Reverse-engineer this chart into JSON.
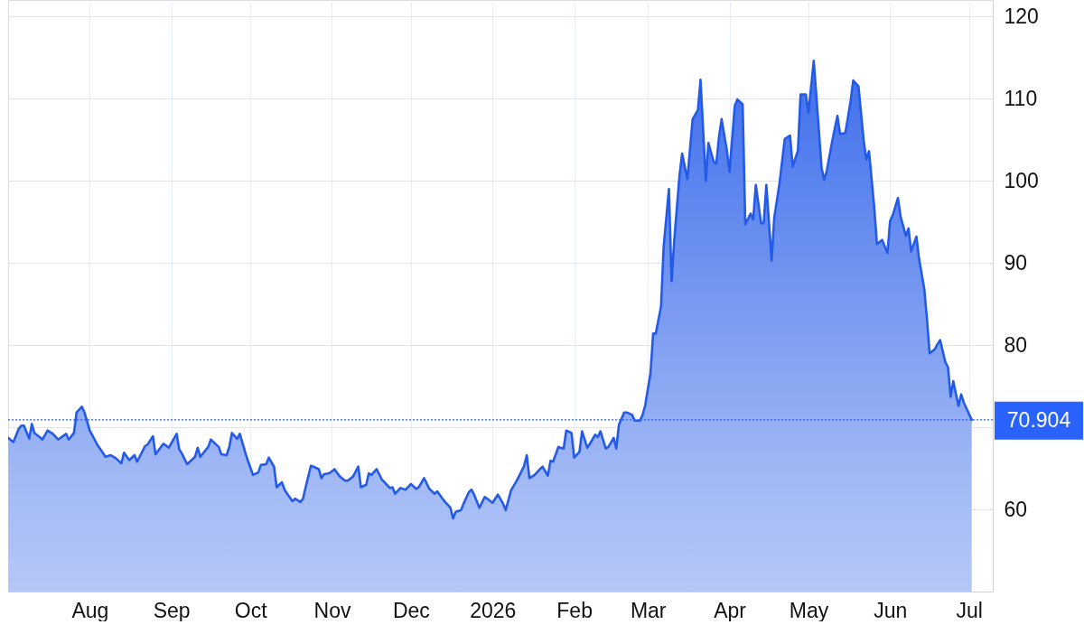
{
  "chart_data": {
    "type": "area",
    "x": [
      "2025-07-01",
      "2025-07-03",
      "2025-07-05",
      "2025-07-06",
      "2025-07-07",
      "2025-07-09",
      "2025-07-10",
      "2025-07-11",
      "2025-07-13",
      "2025-07-14",
      "2025-07-16",
      "2025-07-18",
      "2025-07-20",
      "2025-07-23",
      "2025-07-24",
      "2025-07-26",
      "2025-07-27",
      "2025-07-29",
      "2025-07-30",
      "2025-08-01",
      "2025-08-04",
      "2025-08-07",
      "2025-08-09",
      "2025-08-11",
      "2025-08-13",
      "2025-08-14",
      "2025-08-16",
      "2025-08-18",
      "2025-08-19",
      "2025-08-22",
      "2025-08-23",
      "2025-08-25",
      "2025-08-26",
      "2025-08-29",
      "2025-08-31",
      "2025-09-03",
      "2025-09-04",
      "2025-09-05",
      "2025-09-07",
      "2025-09-10",
      "2025-09-11",
      "2025-09-12",
      "2025-09-15",
      "2025-09-16",
      "2025-09-19",
      "2025-09-20",
      "2025-09-22",
      "2025-09-23",
      "2025-09-24",
      "2025-09-26",
      "2025-09-27",
      "2025-09-29",
      "2025-09-30",
      "2025-10-02",
      "2025-10-04",
      "2025-10-05",
      "2025-10-07",
      "2025-10-08",
      "2025-10-10",
      "2025-10-11",
      "2025-10-13",
      "2025-10-14",
      "2025-10-15",
      "2025-10-17",
      "2025-10-18",
      "2025-10-20",
      "2025-10-21",
      "2025-10-22",
      "2025-10-24",
      "2025-10-25",
      "2025-10-27",
      "2025-10-28",
      "2025-10-29",
      "2025-10-31",
      "2025-11-02",
      "2025-11-04",
      "2025-11-06",
      "2025-11-07",
      "2025-11-09",
      "2025-11-11",
      "2025-11-12",
      "2025-11-14",
      "2025-11-15",
      "2025-11-16",
      "2025-11-18",
      "2025-11-20",
      "2025-11-21",
      "2025-11-23",
      "2025-11-24",
      "2025-11-25",
      "2025-11-27",
      "2025-11-29",
      "2025-12-01",
      "2025-12-03",
      "2025-12-04",
      "2025-12-06",
      "2025-12-08",
      "2025-12-10",
      "2025-12-11",
      "2025-12-13",
      "2025-12-14",
      "2025-12-16",
      "2025-12-17",
      "2025-12-18",
      "2025-12-20",
      "2025-12-21",
      "2025-12-23",
      "2025-12-24",
      "2025-12-25",
      "2025-12-27",
      "2025-12-29",
      "2025-12-30",
      "2026-01-01",
      "2026-01-03",
      "2026-01-05",
      "2026-01-06",
      "2026-01-08",
      "2026-01-10",
      "2026-01-11",
      "2026-01-13",
      "2026-01-14",
      "2026-01-15",
      "2026-01-17",
      "2026-01-19",
      "2026-01-20",
      "2026-01-22",
      "2026-01-23",
      "2026-01-24",
      "2026-01-26",
      "2026-01-28",
      "2026-01-29",
      "2026-01-31",
      "2026-02-01",
      "2026-02-03",
      "2026-02-04",
      "2026-02-06",
      "2026-02-07",
      "2026-02-09",
      "2026-02-10",
      "2026-02-11",
      "2026-02-13",
      "2026-02-14",
      "2026-02-16",
      "2026-02-17",
      "2026-02-18",
      "2026-02-20",
      "2026-02-21",
      "2026-02-23",
      "2026-02-24",
      "2026-02-26",
      "2026-02-27",
      "2026-02-28",
      "2026-03-02",
      "2026-03-03",
      "2026-03-04",
      "2026-03-06",
      "2026-03-07",
      "2026-03-09",
      "2026-03-10",
      "2026-03-11",
      "2026-03-13",
      "2026-03-14",
      "2026-03-16",
      "2026-03-18",
      "2026-03-20",
      "2026-03-21",
      "2026-03-23",
      "2026-03-24",
      "2026-03-26",
      "2026-03-27",
      "2026-03-28",
      "2026-03-29",
      "2026-03-31",
      "2026-04-01",
      "2026-04-03",
      "2026-04-04",
      "2026-04-06",
      "2026-04-07",
      "2026-04-09",
      "2026-04-10",
      "2026-04-11",
      "2026-04-13",
      "2026-04-14",
      "2026-04-15",
      "2026-04-17",
      "2026-04-18",
      "2026-04-20",
      "2026-04-22",
      "2026-04-24",
      "2026-04-25",
      "2026-04-27",
      "2026-04-28",
      "2026-04-30",
      "2026-05-01",
      "2026-05-03",
      "2026-05-04",
      "2026-05-06",
      "2026-05-07",
      "2026-05-08",
      "2026-05-10",
      "2026-05-12",
      "2026-05-13",
      "2026-05-15",
      "2026-05-17",
      "2026-05-18",
      "2026-05-20",
      "2026-05-22",
      "2026-05-23",
      "2026-05-24",
      "2026-05-26",
      "2026-05-27",
      "2026-05-29",
      "2026-05-31",
      "2026-06-01",
      "2026-06-02",
      "2026-06-04",
      "2026-06-05",
      "2026-06-07",
      "2026-06-08",
      "2026-06-09",
      "2026-06-11",
      "2026-06-12",
      "2026-06-14",
      "2026-06-15",
      "2026-06-16",
      "2026-06-18",
      "2026-06-19",
      "2026-06-20",
      "2026-06-22",
      "2026-06-23",
      "2026-06-24",
      "2026-06-25",
      "2026-06-27",
      "2026-06-28",
      "2026-06-29",
      "2026-07-01",
      "2026-07-02"
    ],
    "series": [
      {
        "color": "#245ae8",
        "values": [
          68.7,
          68.2,
          69.8,
          70.2,
          70.2,
          68.6,
          70.4,
          69.3,
          68.8,
          68.5,
          69.6,
          69.2,
          68.5,
          69.2,
          68.5,
          69.3,
          71.8,
          72.5,
          71.8,
          69.6,
          67.8,
          66.4,
          66.6,
          66.2,
          65.6,
          66.9,
          66.0,
          66.6,
          65.8,
          67.7,
          67.9,
          68.9,
          66.7,
          68.0,
          67.5,
          69.2,
          67.3,
          66.8,
          65.5,
          66.4,
          67.5,
          66.4,
          67.6,
          68.5,
          67.6,
          66.7,
          66.6,
          67.6,
          69.3,
          68.6,
          69.2,
          67.0,
          66.0,
          64.2,
          64.5,
          65.4,
          65.5,
          66.3,
          65.2,
          62.7,
          63.3,
          62.4,
          61.9,
          61.0,
          61.3,
          60.9,
          61.3,
          62.7,
          65.3,
          65.2,
          64.9,
          63.8,
          64.3,
          64.4,
          64.9,
          64.0,
          63.5,
          63.5,
          64.0,
          65.2,
          62.7,
          63.0,
          64.4,
          64.2,
          64.9,
          63.6,
          63.3,
          62.6,
          62.7,
          61.9,
          62.6,
          62.4,
          63.1,
          62.5,
          62.7,
          63.8,
          62.5,
          61.9,
          62.2,
          61.3,
          60.9,
          60.2,
          58.9,
          59.7,
          59.9,
          60.7,
          62.1,
          62.4,
          61.8,
          60.2,
          61.5,
          61.3,
          60.8,
          61.8,
          60.7,
          59.9,
          62.3,
          63.4,
          64.0,
          65.3,
          66.6,
          63.8,
          64.2,
          64.9,
          65.2,
          64.1,
          65.9,
          65.8,
          67.6,
          67.4,
          69.6,
          69.3,
          66.3,
          67.0,
          69.5,
          67.5,
          68.0,
          69.1,
          68.8,
          69.5,
          67.4,
          67.6,
          68.7,
          67.4,
          70.3,
          71.8,
          71.8,
          71.5,
          70.8,
          70.8,
          71.5,
          72.7,
          76.6,
          81.4,
          81.4,
          84.7,
          92.0,
          99.0,
          87.8,
          92.7,
          100.6,
          103.3,
          100.2,
          107.5,
          108.6,
          112.3,
          100.0,
          104.6,
          102.3,
          102.1,
          105.3,
          107.5,
          103.7,
          101.1,
          109.1,
          109.9,
          109.3,
          94.7,
          96.0,
          95.3,
          99.5,
          94.8,
          94.9,
          99.5,
          90.3,
          95.5,
          99.7,
          105.1,
          105.5,
          101.7,
          103.7,
          110.5,
          110.5,
          108.3,
          114.6,
          110.3,
          101.5,
          100.1,
          101.3,
          104.8,
          107.9,
          105.7,
          105.8,
          109.7,
          112.2,
          111.5,
          104.8,
          102.6,
          103.6,
          96.7,
          92.3,
          92.8,
          91.2,
          95.1,
          95.8,
          97.9,
          95.6,
          93.3,
          94.2,
          91.4,
          93.2,
          90.5,
          86.8,
          83.2,
          79.0,
          79.5,
          80.1,
          80.6,
          77.9,
          77.3,
          73.7,
          75.6,
          72.6,
          74.0,
          73.0,
          71.6,
          70.9
        ]
      }
    ],
    "xlim": [
      "2025-07-01",
      "2026-07-10"
    ],
    "xticks": [
      {
        "value": "2025-08-01",
        "label": "Aug"
      },
      {
        "value": "2025-09-01",
        "label": "Sep"
      },
      {
        "value": "2025-10-01",
        "label": "Oct"
      },
      {
        "value": "2025-11-01",
        "label": "Nov"
      },
      {
        "value": "2025-12-01",
        "label": "Dec"
      },
      {
        "value": "2026-01-01",
        "label": "2026"
      },
      {
        "value": "2026-02-01",
        "label": "Feb"
      },
      {
        "value": "2026-03-01",
        "label": "Mar"
      },
      {
        "value": "2026-04-01",
        "label": "Apr"
      },
      {
        "value": "2026-05-01",
        "label": "May"
      },
      {
        "value": "2026-06-01",
        "label": "Jun"
      },
      {
        "value": "2026-07-01",
        "label": "Jul"
      }
    ],
    "ylim": [
      50,
      122
    ],
    "yticks": [
      60,
      {
        "value": 70,
        "label": null
      },
      80,
      90,
      100,
      110,
      120
    ],
    "grid": true,
    "ref_lines": [
      {
        "axis": "y",
        "value": 70.904,
        "label": "70.904",
        "color": "#2962ff",
        "line_style": "dotted"
      }
    ]
  }
}
